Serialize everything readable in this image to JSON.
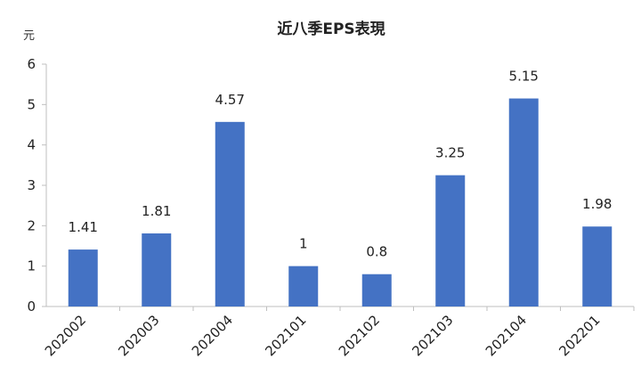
{
  "chart_data": {
    "type": "bar",
    "title": "近八季EPS表現",
    "ylabel": "元",
    "xlabel": "",
    "categories": [
      "202002",
      "202003",
      "202004",
      "202101",
      "202102",
      "202103",
      "202104",
      "202201"
    ],
    "values": [
      1.41,
      1.81,
      4.57,
      1,
      0.8,
      3.25,
      5.15,
      1.98
    ],
    "data_labels": [
      "1.41",
      "1.81",
      "4.57",
      "1",
      "0.8",
      "3.25",
      "5.15",
      "1.98"
    ],
    "ylim": [
      0,
      6
    ],
    "yticks": [
      "0",
      "1",
      "2",
      "3",
      "4",
      "5",
      "6"
    ],
    "grid": false,
    "legend": "none",
    "bar_color": "#4472C4"
  }
}
